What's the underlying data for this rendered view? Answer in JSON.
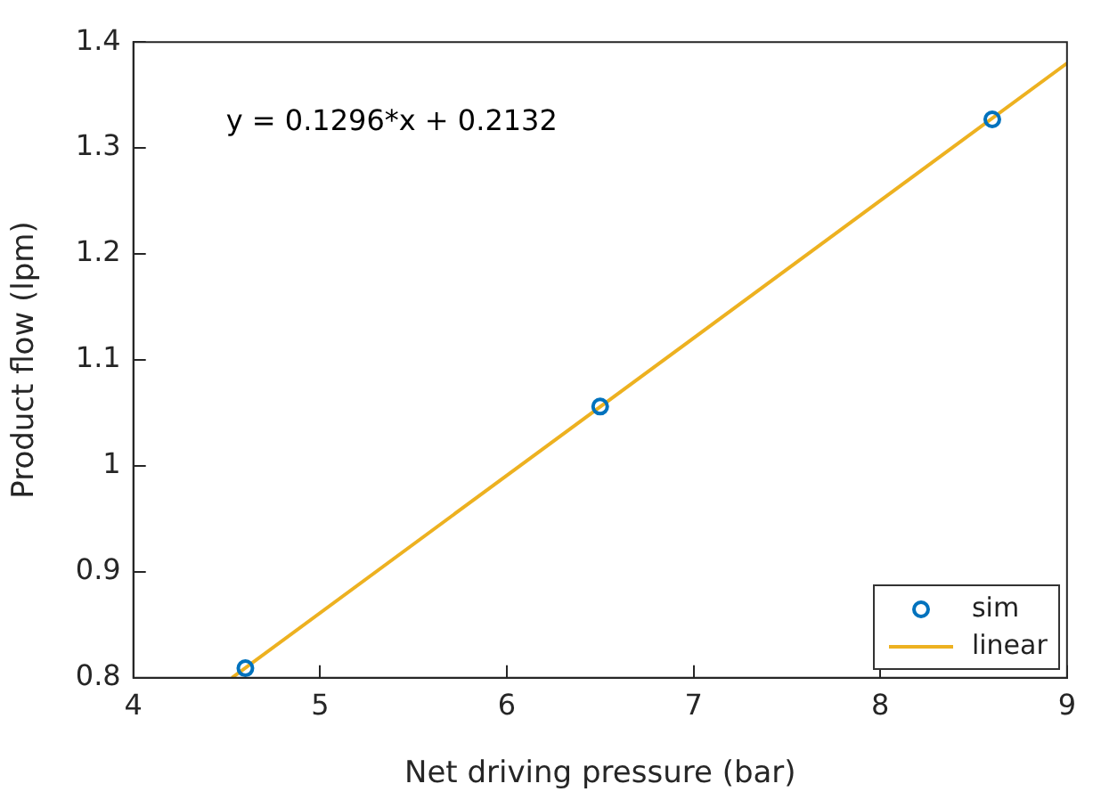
{
  "chart_data": {
    "type": "scatter",
    "xlabel": "Net driving pressure (bar)",
    "ylabel": "Product flow (lpm)",
    "annotations": [
      "y = 0.1296*x + 0.2132"
    ],
    "xlim": [
      4,
      9
    ],
    "xticks": [
      4,
      5,
      6,
      7,
      8,
      9
    ],
    "ylim": [
      0.8,
      1.4
    ],
    "yticks": [
      0.8,
      0.9,
      1,
      1.1,
      1.2,
      1.3,
      1.4
    ],
    "grid": false,
    "legend": "bottom right",
    "series": [
      {
        "name": "sim",
        "type": "scatter",
        "marker": "circle",
        "color": "#0072bd",
        "x": [
          4.6,
          6.5,
          8.6
        ],
        "values": [
          0.809,
          1.056,
          1.327
        ]
      },
      {
        "name": "linear",
        "type": "line",
        "marker": "none",
        "line_style": "solid",
        "color": "#edb120",
        "x": [
          4.528,
          9
        ],
        "values": [
          0.8,
          1.38
        ]
      }
    ]
  }
}
